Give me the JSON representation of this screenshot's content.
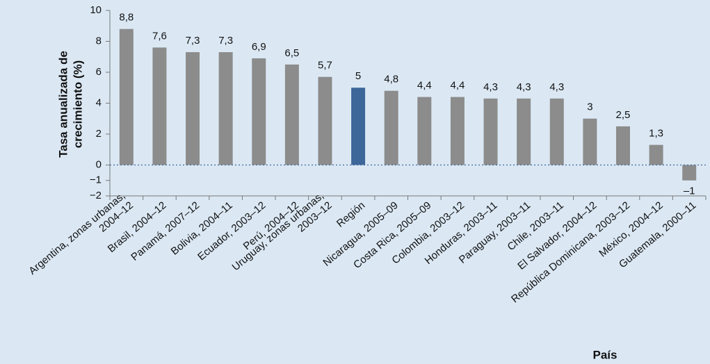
{
  "chart_data": {
    "type": "bar",
    "y_label": [
      "Tasa anualizada de",
      "crecimiento (%)"
    ],
    "x_label": "País",
    "categories": [
      [
        "Argentina, zonas urbanas,",
        "2004–12"
      ],
      [
        "Brasil, 2004–12"
      ],
      [
        "Panamá, 2007–12"
      ],
      [
        "Bolivia, 2004–11"
      ],
      [
        "Ecuador, 2003–12"
      ],
      [
        "Perú, 2004–12"
      ],
      [
        "Uruguay, zonas urbanas,",
        "2003–12"
      ],
      [
        "Región"
      ],
      [
        "Nicaragua, 2005–09"
      ],
      [
        "Costa Rica, 2005–09"
      ],
      [
        "Colombia, 2003–12"
      ],
      [
        "Honduras, 2003–11"
      ],
      [
        "Paraguay, 2003–11"
      ],
      [
        "Chile, 2003–11"
      ],
      [
        "El Salvador, 2004–12"
      ],
      [
        "República Dominicana, 2003–12"
      ],
      [
        "México, 2004–12"
      ],
      [
        "Guatemala, 2000–11"
      ]
    ],
    "values": [
      8.8,
      7.6,
      7.3,
      7.3,
      6.9,
      6.5,
      5.7,
      5,
      4.8,
      4.4,
      4.4,
      4.3,
      4.3,
      4.3,
      3,
      2.5,
      1.3,
      -1
    ],
    "value_labels": [
      "8,8",
      "7,6",
      "7,3",
      "7,3",
      "6,9",
      "6,5",
      "5,7",
      "5",
      "4,8",
      "4,4",
      "4,4",
      "4,3",
      "4,3",
      "4,3",
      "3",
      "2,5",
      "1,3",
      "–1"
    ],
    "colors": [
      "#8c8c8c",
      "#8c8c8c",
      "#8c8c8c",
      "#8c8c8c",
      "#8c8c8c",
      "#8c8c8c",
      "#8c8c8c",
      "#3d6699",
      "#8c8c8c",
      "#8c8c8c",
      "#8c8c8c",
      "#8c8c8c",
      "#8c8c8c",
      "#8c8c8c",
      "#8c8c8c",
      "#8c8c8c",
      "#8c8c8c",
      "#8c8c8c"
    ],
    "ylim": [
      -2,
      10
    ],
    "yticks": [
      10,
      8,
      6,
      4,
      2,
      0,
      {
        "value": -1,
        "label": "−1"
      },
      {
        "value": -2,
        "label": "−2"
      }
    ],
    "zero_line_color": "#3d6699"
  }
}
